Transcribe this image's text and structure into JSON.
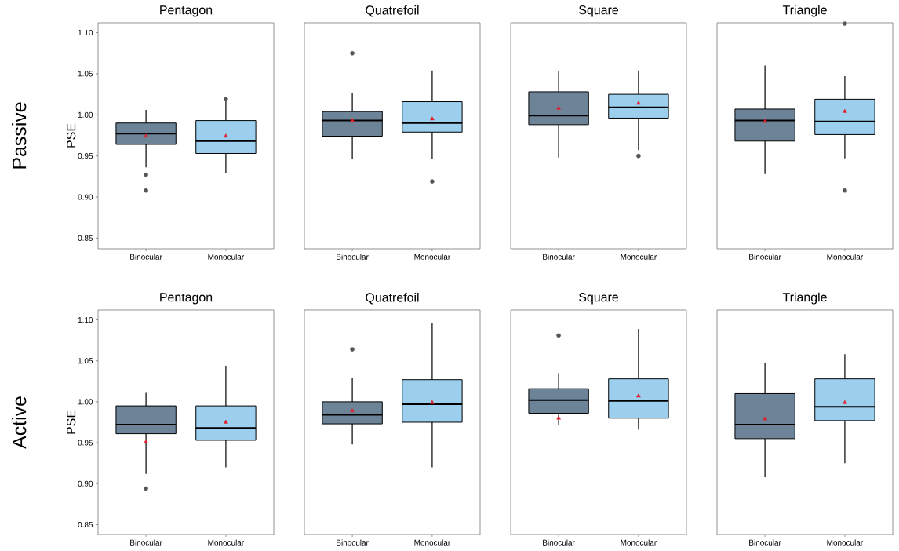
{
  "chart_data": [
    {
      "type": "box",
      "title": "Pentagon",
      "ylabel": "PSE",
      "annotations": [
        "Passive"
      ],
      "categories": [
        "Binocular",
        "Monocular"
      ],
      "colors": [
        "#6d8398",
        "#9ccfee"
      ],
      "ylim": [
        0.837,
        1.112
      ],
      "yticks": [
        {
          "value": 0.85,
          "label": "0.85"
        },
        {
          "value": 0.9,
          "label": "0.90"
        },
        {
          "value": 0.95,
          "label": "0.95"
        },
        {
          "value": 1.0,
          "label": "1.00"
        },
        {
          "value": 1.05,
          "label": "1.05"
        },
        {
          "value": 1.1,
          "label": "1.10"
        }
      ],
      "boxes": [
        {
          "low": 0.936,
          "q1": 0.964,
          "median": 0.977,
          "q3": 0.99,
          "high": 1.006,
          "mean": 0.974,
          "outliers": [
            0.927,
            0.908
          ]
        },
        {
          "low": 0.929,
          "q1": 0.953,
          "median": 0.968,
          "q3": 0.993,
          "high": 1.02,
          "mean": 0.974,
          "outliers": [
            1.019
          ]
        }
      ]
    },
    {
      "type": "box",
      "title": "Quatrefoil",
      "tick_labels": "x",
      "categories": [
        "Binocular",
        "Monocular"
      ],
      "colors": [
        "#6d8398",
        "#9ccfee"
      ],
      "ylim": [
        0.837,
        1.112
      ],
      "boxes": [
        {
          "low": 0.946,
          "q1": 0.974,
          "median": 0.993,
          "q3": 1.004,
          "high": 1.027,
          "mean": 0.993,
          "outliers": [
            1.075
          ]
        },
        {
          "low": 0.946,
          "q1": 0.979,
          "median": 0.99,
          "q3": 1.016,
          "high": 1.054,
          "mean": 0.995,
          "outliers": [
            0.919
          ]
        }
      ]
    },
    {
      "type": "box",
      "title": "Square",
      "tick_labels": "x",
      "categories": [
        "Binocular",
        "Monocular"
      ],
      "colors": [
        "#6d8398",
        "#9ccfee"
      ],
      "ylim": [
        0.837,
        1.112
      ],
      "boxes": [
        {
          "low": 0.948,
          "q1": 0.988,
          "median": 0.999,
          "q3": 1.028,
          "high": 1.053,
          "mean": 1.008
        },
        {
          "low": 0.957,
          "q1": 0.996,
          "median": 1.009,
          "q3": 1.025,
          "high": 1.054,
          "mean": 1.014,
          "outliers": [
            0.95
          ]
        }
      ]
    },
    {
      "type": "box",
      "title": "Triangle",
      "tick_labels": "x",
      "categories": [
        "Binocular",
        "Monocular"
      ],
      "colors": [
        "#6d8398",
        "#9ccfee"
      ],
      "ylim": [
        0.837,
        1.112
      ],
      "boxes": [
        {
          "low": 0.928,
          "q1": 0.968,
          "median": 0.993,
          "q3": 1.007,
          "high": 1.06,
          "mean": 0.992
        },
        {
          "low": 0.947,
          "q1": 0.976,
          "median": 0.992,
          "q3": 1.019,
          "high": 1.047,
          "mean": 1.004,
          "outliers": [
            0.908,
            1.111
          ]
        }
      ]
    },
    {
      "type": "box",
      "title": "Pentagon",
      "ylabel": "PSE",
      "annotations": [
        "Active"
      ],
      "categories": [
        "Binocular",
        "Monocular"
      ],
      "colors": [
        "#6d8398",
        "#9ccfee"
      ],
      "ylim": [
        0.838,
        1.112
      ],
      "yticks": [
        {
          "value": 0.85,
          "label": "0.85"
        },
        {
          "value": 0.9,
          "label": "0.90"
        },
        {
          "value": 0.95,
          "label": "0.95"
        },
        {
          "value": 1.0,
          "label": "1.00"
        },
        {
          "value": 1.05,
          "label": "1.05"
        },
        {
          "value": 1.1,
          "label": "1.10"
        }
      ],
      "boxes": [
        {
          "low": 0.912,
          "q1": 0.961,
          "median": 0.972,
          "q3": 0.995,
          "high": 1.011,
          "mean": 0.951,
          "outliers": [
            0.894
          ]
        },
        {
          "low": 0.92,
          "q1": 0.953,
          "median": 0.968,
          "q3": 0.995,
          "high": 1.044,
          "mean": 0.975
        }
      ]
    },
    {
      "type": "box",
      "title": "Quatrefoil",
      "tick_labels": "x",
      "categories": [
        "Binocular",
        "Monocular"
      ],
      "colors": [
        "#6d8398",
        "#9ccfee"
      ],
      "ylim": [
        0.838,
        1.112
      ],
      "boxes": [
        {
          "low": 0.948,
          "q1": 0.973,
          "median": 0.984,
          "q3": 1.0,
          "high": 1.029,
          "mean": 0.989,
          "outliers": [
            1.064
          ]
        },
        {
          "low": 0.92,
          "q1": 0.975,
          "median": 0.997,
          "q3": 1.027,
          "high": 1.096,
          "mean": 0.999
        }
      ]
    },
    {
      "type": "box",
      "title": "Square",
      "tick_labels": "x",
      "categories": [
        "Binocular",
        "Monocular"
      ],
      "colors": [
        "#6d8398",
        "#9ccfee"
      ],
      "ylim": [
        0.838,
        1.112
      ],
      "boxes": [
        {
          "low": 0.972,
          "q1": 0.986,
          "median": 1.002,
          "q3": 1.016,
          "high": 1.035,
          "mean": 0.98,
          "outliers": [
            1.081
          ]
        },
        {
          "low": 0.966,
          "q1": 0.98,
          "median": 1.001,
          "q3": 1.028,
          "high": 1.089,
          "mean": 1.007
        }
      ]
    },
    {
      "type": "box",
      "title": "Triangle",
      "tick_labels": "x",
      "categories": [
        "Binocular",
        "Monocular"
      ],
      "colors": [
        "#6d8398",
        "#9ccfee"
      ],
      "ylim": [
        0.838,
        1.112
      ],
      "boxes": [
        {
          "low": 0.908,
          "q1": 0.955,
          "median": 0.972,
          "q3": 1.01,
          "high": 1.047,
          "mean": 0.979
        },
        {
          "low": 0.925,
          "q1": 0.977,
          "median": 0.994,
          "q3": 1.028,
          "high": 1.058,
          "mean": 0.999
        }
      ]
    }
  ]
}
